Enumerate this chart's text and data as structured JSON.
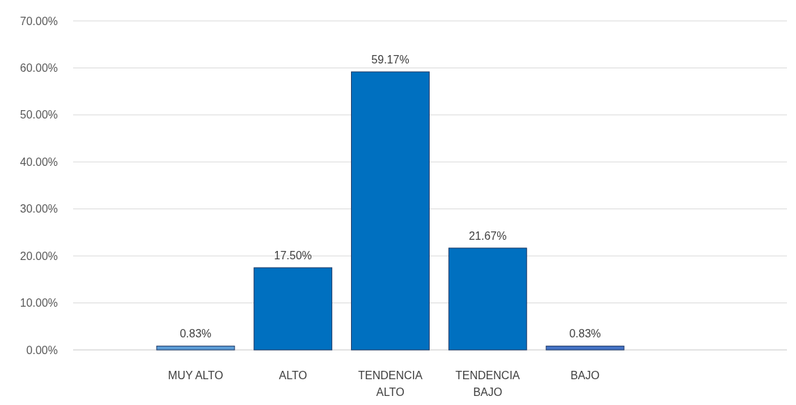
{
  "chart_data": {
    "type": "bar",
    "categories": [
      "MUY ALTO",
      "ALTO",
      "TENDENCIA ALTO",
      "TENDENCIA BAJO",
      "BAJO"
    ],
    "values": [
      0.83,
      17.5,
      59.17,
      21.67,
      0.83
    ],
    "colors": [
      "#5b9bd5",
      "#0070c0",
      "#0070c0",
      "#0070c0",
      "#4472c4"
    ],
    "value_labels": [
      "0.83%",
      "17.50%",
      "59.17%",
      "21.67%",
      "0.83%"
    ],
    "ylim": [
      0,
      70
    ],
    "yticks": [
      {
        "value": 0,
        "label": "0.00%"
      },
      {
        "value": 10,
        "label": "10.00%"
      },
      {
        "value": 20,
        "label": "20.00%"
      },
      {
        "value": 30,
        "label": "30.00%"
      },
      {
        "value": 40,
        "label": "40.00%"
      },
      {
        "value": 50,
        "label": "50.00%"
      },
      {
        "value": 60,
        "label": "60.00%"
      },
      {
        "value": 70,
        "label": "70.00%"
      }
    ],
    "grid": "y"
  }
}
